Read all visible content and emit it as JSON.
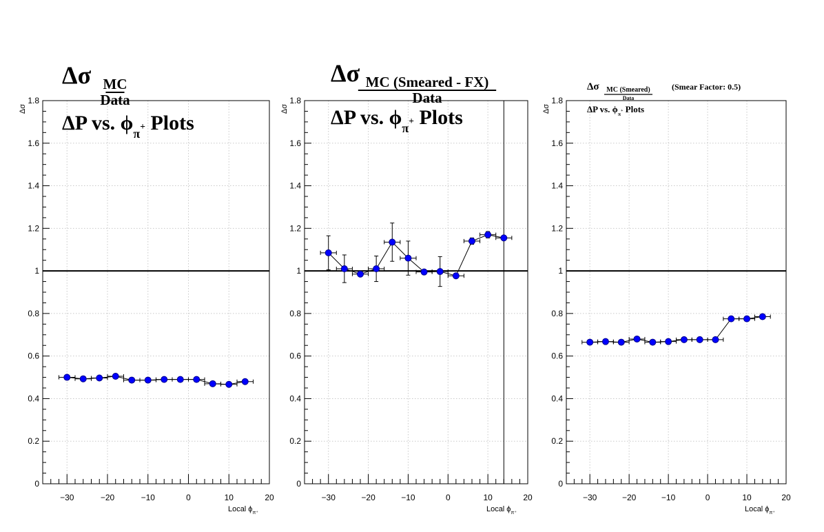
{
  "chart_data": [
    {
      "type": "scatter",
      "title_main": "Δσ",
      "title_numerator": "MC",
      "title_denominator": "Data",
      "subtitle_pre": "ΔP vs.  ϕ",
      "subtitle_sub": "π",
      "subtitle_sup": "+",
      "subtitle_post": " Plots",
      "side_note": "",
      "xlabel_pre": "Local ϕ",
      "xlabel_sub": "π⁺",
      "ylabel": "Δσ",
      "xlim": [
        -36,
        20
      ],
      "ylim": [
        0,
        1.8
      ],
      "x_ticks": [
        -30,
        -20,
        -10,
        0,
        10,
        20
      ],
      "x_tick_labels": [
        "−30",
        "−20",
        "−10",
        "0",
        "10",
        "20"
      ],
      "y_ticks": [
        0,
        0.2,
        0.4,
        0.6,
        0.8,
        1,
        1.2,
        1.4,
        1.6,
        1.8
      ],
      "y_tick_labels": [
        "0",
        "0.2",
        "0.4",
        "0.6",
        "0.8",
        "1",
        "1.2",
        "1.4",
        "1.6",
        "1.8"
      ],
      "reference_line_y": 1,
      "vertical_line_x": null,
      "grid": true,
      "marker_color": "#0000ff",
      "x": [
        -30,
        -26,
        -22,
        -18,
        -14,
        -10,
        -6,
        -2,
        2,
        6,
        10,
        14
      ],
      "y": [
        0.5,
        0.493,
        0.497,
        0.505,
        0.487,
        0.487,
        0.49,
        0.49,
        0.49,
        0.47,
        0.467,
        0.48
      ],
      "yerr": [
        0.005,
        0.005,
        0.005,
        0.006,
        0.005,
        0.005,
        0.005,
        0.005,
        0.005,
        0.005,
        0.005,
        0.005
      ],
      "xerr": 2
    },
    {
      "type": "scatter",
      "title_main": "Δσ",
      "title_numerator": "MC (Smeared - FX)",
      "title_denominator": "Data",
      "subtitle_pre": "ΔP vs.  ϕ",
      "subtitle_sub": "π",
      "subtitle_sup": "+",
      "subtitle_post": " Plots",
      "side_note": "",
      "xlabel_pre": "Local ϕ",
      "xlabel_sub": "π⁺",
      "ylabel": "Δσ",
      "xlim": [
        -36,
        20
      ],
      "ylim": [
        0,
        1.8
      ],
      "x_ticks": [
        -30,
        -20,
        -10,
        0,
        10,
        20
      ],
      "x_tick_labels": [
        "−30",
        "−20",
        "−10",
        "0",
        "10",
        "20"
      ],
      "y_ticks": [
        0,
        0.2,
        0.4,
        0.6,
        0.8,
        1,
        1.2,
        1.4,
        1.6,
        1.8
      ],
      "y_tick_labels": [
        "0",
        "0.2",
        "0.4",
        "0.6",
        "0.8",
        "1",
        "1.2",
        "1.4",
        "1.6",
        "1.8"
      ],
      "reference_line_y": 1,
      "vertical_line_x": 14,
      "grid": true,
      "marker_color": "#0000ff",
      "x": [
        -30,
        -26,
        -22,
        -18,
        -14,
        -10,
        -6,
        -2,
        2,
        6,
        10,
        14
      ],
      "y": [
        1.085,
        1.01,
        0.985,
        1.01,
        1.135,
        1.06,
        0.995,
        0.997,
        0.977,
        1.14,
        1.17,
        1.155
      ],
      "yerr": [
        0.08,
        0.065,
        0.01,
        0.06,
        0.09,
        0.08,
        0.005,
        0.07,
        0.01,
        0.015,
        0.015,
        0.01
      ],
      "xerr": 2
    },
    {
      "type": "scatter",
      "title_main": "Δσ",
      "title_numerator": "MC (Smeared)",
      "title_denominator": "Data",
      "subtitle_pre": "ΔP vs.  ϕ",
      "subtitle_sub": "π",
      "subtitle_sup": "+",
      "subtitle_post": " Plots",
      "side_note": "(Smear Factor: 0.5)",
      "xlabel_pre": "Local ϕ",
      "xlabel_sub": "π⁺",
      "ylabel": "Δσ",
      "xlim": [
        -36,
        20
      ],
      "ylim": [
        0,
        1.8
      ],
      "x_ticks": [
        -30,
        -20,
        -10,
        0,
        10,
        20
      ],
      "x_tick_labels": [
        "−30",
        "−20",
        "−10",
        "0",
        "10",
        "20"
      ],
      "y_ticks": [
        0,
        0.2,
        0.4,
        0.6,
        0.8,
        1,
        1.2,
        1.4,
        1.6,
        1.8
      ],
      "y_tick_labels": [
        "0",
        "0.2",
        "0.4",
        "0.6",
        "0.8",
        "1",
        "1.2",
        "1.4",
        "1.6",
        "1.8"
      ],
      "reference_line_y": 1,
      "vertical_line_x": null,
      "grid": true,
      "marker_color": "#0000ff",
      "x": [
        -30,
        -26,
        -22,
        -18,
        -14,
        -10,
        -6,
        -2,
        2,
        6,
        10,
        14
      ],
      "y": [
        0.665,
        0.668,
        0.665,
        0.68,
        0.665,
        0.668,
        0.677,
        0.677,
        0.677,
        0.775,
        0.775,
        0.785
      ],
      "yerr": [
        0.008,
        0.008,
        0.008,
        0.008,
        0.008,
        0.008,
        0.008,
        0.008,
        0.008,
        0.008,
        0.008,
        0.01
      ],
      "xerr": 2
    }
  ]
}
